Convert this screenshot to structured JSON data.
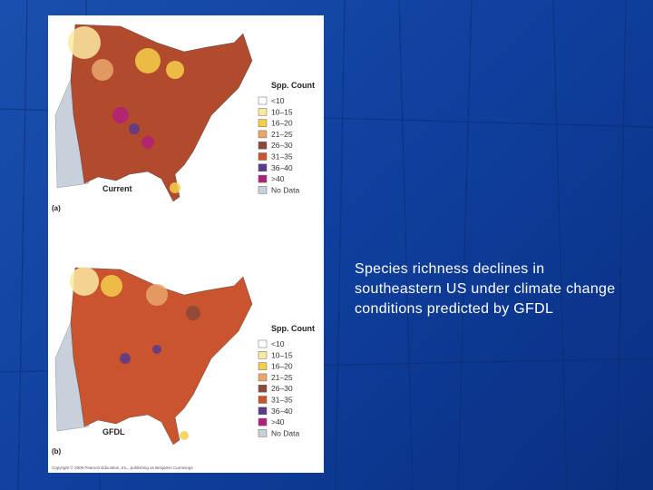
{
  "panels": [
    {
      "panel_label": "(a)",
      "map_label": "Current",
      "legend_title": "Spp. Count",
      "legend": [
        {
          "label": "<10",
          "color": "#ffffff"
        },
        {
          "label": "10–15",
          "color": "#fbe9a0"
        },
        {
          "label": "16–20",
          "color": "#f5cf4a"
        },
        {
          "label": "21–25",
          "color": "#e9a66a"
        },
        {
          "label": "26–30",
          "color": "#8a4a3a"
        },
        {
          "label": "31–35",
          "color": "#c9542e"
        },
        {
          "label": "36–40",
          "color": "#5a3a8a"
        },
        {
          "label": ">40",
          "color": "#b0207a"
        },
        {
          "label": "No Data",
          "color": "#c8d0dc"
        }
      ]
    },
    {
      "panel_label": "(b)",
      "map_label": "GFDL",
      "legend_title": "Spp. Count",
      "legend": [
        {
          "label": "<10",
          "color": "#ffffff"
        },
        {
          "label": "10–15",
          "color": "#fbe9a0"
        },
        {
          "label": "16–20",
          "color": "#f5cf4a"
        },
        {
          "label": "21–25",
          "color": "#e9a66a"
        },
        {
          "label": "26–30",
          "color": "#8a4a3a"
        },
        {
          "label": "31–35",
          "color": "#c9542e"
        },
        {
          "label": "36–40",
          "color": "#5a3a8a"
        },
        {
          "label": ">40",
          "color": "#b0207a"
        },
        {
          "label": "No Data",
          "color": "#c8d0dc"
        }
      ]
    }
  ],
  "copyright": "Copyright © 2006 Pearson Education, Inc., publishing as Benjamin Cummings",
  "caption": "Species richness declines in southeastern US under climate change conditions predicted by GFDL"
}
